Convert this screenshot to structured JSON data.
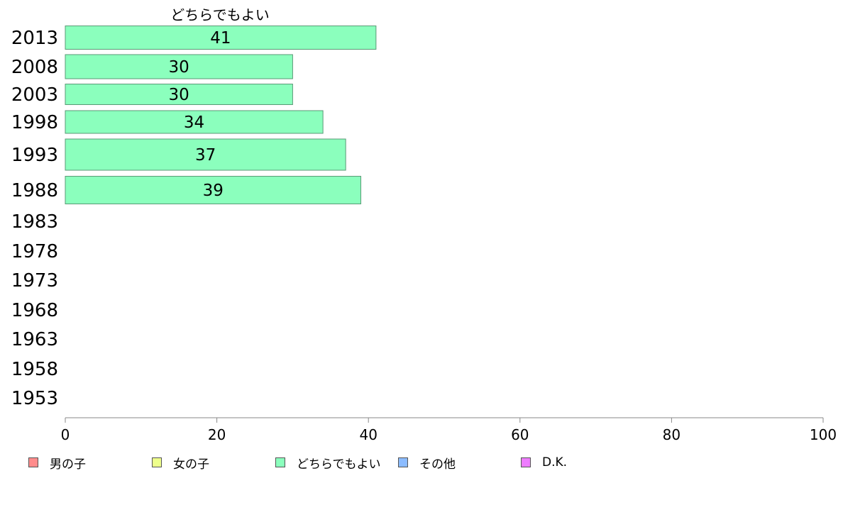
{
  "chart_data": {
    "type": "bar",
    "orientation": "horizontal",
    "title": "どちらでもよい",
    "categories": [
      "2013",
      "2008",
      "2003",
      "1998",
      "1993",
      "1988",
      "1983",
      "1978",
      "1973",
      "1968",
      "1963",
      "1958",
      "1953"
    ],
    "series": [
      {
        "name": "どちらでもよい",
        "color": "#8bffbd",
        "values": [
          41,
          30,
          30,
          34,
          37,
          39,
          null,
          null,
          null,
          null,
          null,
          null,
          null
        ],
        "value_labels": [
          "41",
          "30",
          "30",
          "34",
          "37",
          "39"
        ]
      }
    ],
    "xlim": [
      0,
      100
    ],
    "xticks": [
      "0",
      "20",
      "40",
      "60",
      "80",
      "100"
    ],
    "grid": false,
    "legend_position": "bottom",
    "legend": [
      {
        "label": "男の子",
        "color": "#ff8c8c"
      },
      {
        "label": "女の子",
        "color": "#eeff8c"
      },
      {
        "label": "どちらでもよい",
        "color": "#8bffbd"
      },
      {
        "label": "その他",
        "color": "#8cbcff"
      },
      {
        "label": "D.K.",
        "color": "#ee7dff"
      }
    ]
  }
}
